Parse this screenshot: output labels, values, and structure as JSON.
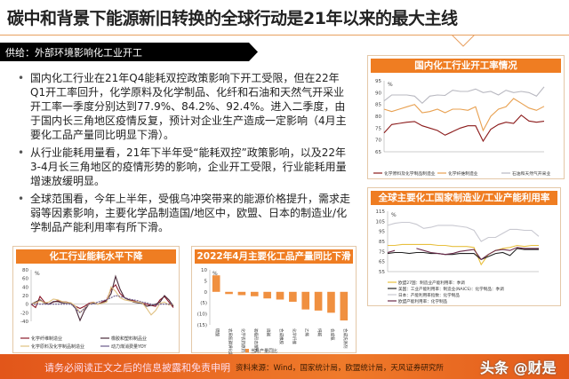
{
  "title": "碳中和背景下能源新旧转换的全球行动是21年以来的最大主线",
  "banner": "供给：外部环境影响化工业开工",
  "bullets": [
    "国内化工行业在21年Q4能耗双控政策影响下开工受限，但在22年Q1开工率回升，化学原料及化学制品、化纤和石油和天然气开采业开工率一季度分别达到77.9%、84.2%、92.4%。进入二季度，由于国内长三角地区疫情反复，预计对企业生产造成一定影响（4月主要化工品产量同比明显下滑）。",
    "从行业能耗用量看，21年下半年受“能耗双控”政策影响，以及22年3-4月长三角地区的疫情形势的影响，企业开工受限，行业能耗用量增速放缓明显。",
    "全球范围看，今年上半年，受俄乌冲突带来的能源价格提升，需求走弱等因素影响，主要化学品制造国/地区中，欧盟、日本的制造业/化学制品产能利用率有所下滑。"
  ],
  "footer": {
    "disclaimer": "请务必阅读正文之后的信息披露和免责申明",
    "source": "资料来源：Wind，国家统计局，欧盟统计局，天风证券研究所",
    "watermark": "头条 @财是"
  },
  "chart_data": [
    {
      "type": "line",
      "title": "国内化工行业开工率情况",
      "ylabel": "%",
      "ylim": [
        65,
        95
      ],
      "yticks": [
        65,
        70,
        75,
        80,
        85,
        90,
        95
      ],
      "series": [
        {
          "name": "化学原料及化学制品制造业",
          "color": "#8b1a1a",
          "values": [
            73,
            76.5,
            77,
            77.5,
            77.8,
            76,
            75,
            74,
            72,
            73.5,
            75,
            76,
            76,
            69.5,
            74.5,
            76.5,
            77.5,
            77,
            80.5,
            78,
            77.5,
            77.9
          ]
        },
        {
          "name": "化学纤维制造业",
          "color": "#e8a050",
          "values": [
            83,
            82,
            83,
            84,
            85,
            81.5,
            82,
            83,
            81.5,
            83,
            83,
            82.5,
            84,
            74,
            80,
            83,
            84,
            87.5,
            85.5,
            83.5,
            82.5,
            84.2
          ]
        },
        {
          "name": "石油和天然气开采业",
          "color": "#b8b8c0",
          "values": [
            86.5,
            89,
            89,
            89,
            88.5,
            85.5,
            88.5,
            89,
            88.8,
            91,
            90.5,
            90.5,
            91.5,
            90,
            90.5,
            89,
            91,
            90,
            90.5,
            90,
            88.5,
            92.4
          ]
        }
      ]
    },
    {
      "type": "line",
      "title": "全球主要化工国家制造业/工业产能利用率",
      "ylabel": "%",
      "ylim": [
        55,
        115
      ],
      "yticks": [
        55,
        65,
        75,
        85,
        95,
        105,
        115
      ],
      "series": [
        {
          "name": "欧盟27国：制造业产能利用率：季调",
          "color": "#e8c040",
          "values": [
            81,
            81,
            82,
            82,
            82,
            82,
            82,
            81,
            81,
            80,
            80,
            80,
            79,
            62,
            72,
            76,
            78,
            79,
            81,
            80,
            81,
            81
          ]
        },
        {
          "name": "美国：工业产能利用率：制造业(NAICS)：化学制品：季调",
          "color": "#222",
          "values": [
            73,
            74,
            74,
            73,
            74,
            74,
            73,
            73,
            72,
            72,
            73,
            73,
            73,
            67,
            70,
            73,
            74,
            71,
            78,
            77,
            77,
            77
          ]
        },
        {
          "name": "日本：产能利用率指数：化学制品",
          "color": "#c8c8d0",
          "values": [
            101,
            103,
            104,
            104,
            102,
            98,
            99,
            101,
            101,
            101,
            100,
            99,
            96,
            85,
            89,
            89,
            93,
            97,
            97,
            96,
            96,
            90
          ]
        },
        {
          "name": "欧盟产能利用率：化学制品",
          "color": "#6a2a4a",
          "values": [
            74,
            76,
            null,
            null,
            78,
            76,
            74,
            73,
            72,
            73,
            75,
            76,
            77,
            67,
            72,
            76,
            77,
            76,
            79,
            78,
            78,
            78
          ]
        }
      ]
    },
    {
      "type": "line",
      "title": "化工行业能耗水平下降",
      "ylabel": "%",
      "ylim": [
        -40,
        80
      ],
      "yticks": [
        -40,
        -20,
        0,
        20,
        40,
        60,
        80
      ],
      "series": [
        {
          "name": "化学纤维制造业",
          "color": "#8b1a2a",
          "values": [
            0,
            -8,
            18,
            5,
            0,
            5,
            8,
            6,
            5,
            2,
            -5,
            -10,
            -5,
            2,
            5,
            0,
            5,
            10,
            35,
            45,
            25,
            15,
            10,
            8,
            5,
            2,
            0,
            -3,
            -5,
            10,
            18,
            5,
            -8
          ]
        },
        {
          "name": "橡胶和塑料制品业",
          "color": "#4a2a3a",
          "values": [
            0,
            5,
            10,
            2,
            0,
            6,
            6,
            3,
            3,
            2,
            -10,
            -38,
            -15,
            0,
            3,
            0,
            3,
            8,
            25,
            65,
            35,
            15,
            10,
            5,
            3,
            2,
            -5,
            -3,
            0,
            5,
            20,
            10,
            -5
          ]
        },
        {
          "name": "化学原料及化学制品制造业",
          "color": "#e0c080",
          "values": [
            0,
            3,
            8,
            3,
            5,
            12,
            10,
            6,
            4,
            3,
            -5,
            -20,
            -10,
            0,
            5,
            0,
            2,
            5,
            40,
            30,
            15,
            10,
            8,
            6,
            5,
            3,
            -10,
            -25,
            -15,
            2,
            5,
            -2,
            0
          ]
        },
        {
          "name": "动力煤消费量YOY",
          "color": "#6a5a8a",
          "dash": true,
          "values": [
            0,
            0,
            0,
            0,
            0,
            0,
            0,
            0,
            0,
            0,
            -10,
            -20,
            -10,
            0,
            0,
            5,
            8,
            10,
            15,
            20,
            18,
            15,
            12,
            10,
            8,
            5,
            3,
            0,
            -2,
            0,
            0,
            0,
            0
          ]
        }
      ]
    },
    {
      "type": "bar",
      "title": "2022年4月主要化工品产量同比下滑",
      "ylabel": "%",
      "ylim": [
        -15,
        10
      ],
      "yticks": [
        10,
        5,
        0,
        -5,
        -10,
        -15
      ],
      "legend": "当月产量同比",
      "color": "#f09040",
      "categories": [
        "硫酸",
        "农用氮磷钾化肥",
        "化学农药原药",
        "初级形态塑料",
        "烧碱",
        "合成橡胶",
        "化学纤维",
        "乙烯",
        "纯碱",
        "合成氨",
        "合成洗涤剂"
      ],
      "values": [
        7.5,
        -1,
        -1.5,
        -2,
        -3,
        -3.5,
        -4.5,
        -8,
        -8.5,
        -9.5,
        -13
      ]
    }
  ]
}
